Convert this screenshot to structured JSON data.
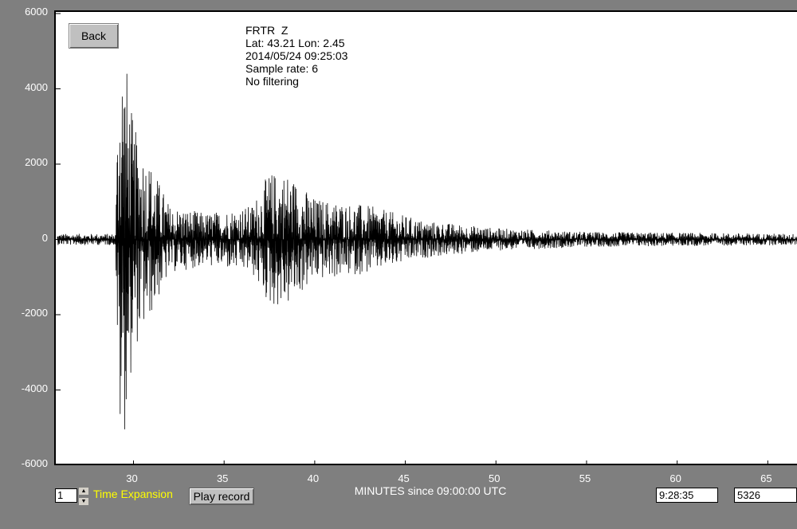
{
  "chart_data": {
    "type": "line",
    "title": "",
    "xlabel": "MINUTES since 09:00:00 UTC",
    "ylabel": "",
    "xlim": [
      25.8,
      66.7
    ],
    "ylim": [
      -6000,
      6000
    ],
    "yticks": [
      6000,
      4000,
      2000,
      0,
      -2000,
      -4000,
      -6000
    ],
    "yticks_labels": [
      "6000",
      "4000",
      "2000",
      "0",
      "-2000",
      "-4000",
      "-6000"
    ],
    "xticks": [
      30,
      35,
      40,
      45,
      50,
      55,
      60,
      65
    ],
    "xticks_labels": [
      "30",
      "35",
      "40",
      "45",
      "50",
      "55",
      "60",
      "65"
    ],
    "grid": false,
    "line_color": "#000000",
    "series": [
      {
        "values_envelope": [
          {
            "x": 25.8,
            "amp": 150
          },
          {
            "x": 29.0,
            "amp": 150
          },
          {
            "x": 29.2,
            "amp": 5500
          },
          {
            "x": 29.5,
            "amp": 5200
          },
          {
            "x": 30.0,
            "amp": 3000
          },
          {
            "x": 31.0,
            "amp": 2000
          },
          {
            "x": 32.0,
            "amp": 900
          },
          {
            "x": 34.0,
            "amp": 700
          },
          {
            "x": 36.5,
            "amp": 900
          },
          {
            "x": 37.5,
            "amp": 1800
          },
          {
            "x": 38.5,
            "amp": 1800
          },
          {
            "x": 40.0,
            "amp": 1100
          },
          {
            "x": 43.0,
            "amp": 900
          },
          {
            "x": 46.0,
            "amp": 500
          },
          {
            "x": 50.0,
            "amp": 300
          },
          {
            "x": 55.0,
            "amp": 200
          },
          {
            "x": 66.7,
            "amp": 150
          }
        ]
      }
    ]
  },
  "controls": {
    "back_label": "Back",
    "expansion_value": "1",
    "time_expansion_label": "Time Expansion",
    "play_record_label": "Play record",
    "time_readout": "9:28:35",
    "sample_readout": "5326"
  },
  "info": {
    "station": "FRTR  Z",
    "latlon": "Lat: 43.21 Lon: 2.45",
    "datetime": "2014/05/24 09:25:03",
    "sample_rate": "Sample rate: 6",
    "filtering": "No filtering"
  }
}
